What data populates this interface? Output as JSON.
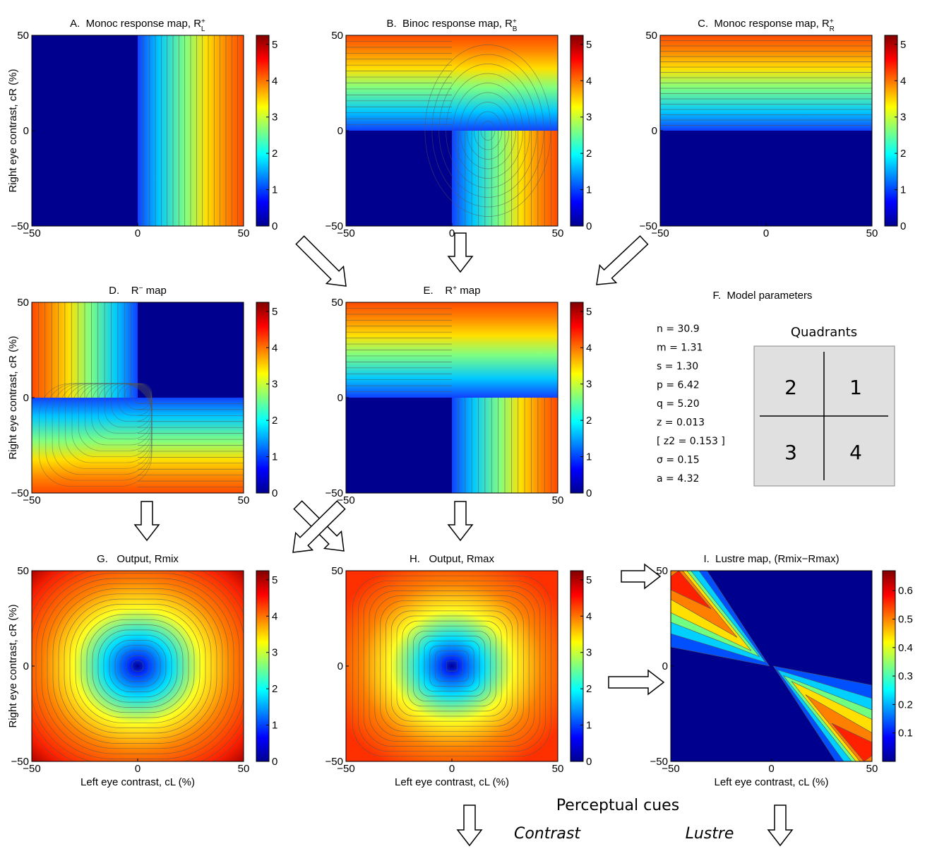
{
  "panels": [
    {
      "title": "A.  Monoc response map, R",
      "title_sup": "+",
      "title_sub": "L",
      "ylabel": "Right eye contrast, cR (%)",
      "xlim": [
        -50,
        50
      ],
      "ylim": [
        -50,
        50
      ],
      "xticks": [
        {
          "value": -50,
          "label": "−50"
        },
        0,
        50
      ],
      "yticks": [
        {
          "value": -50,
          "label": "−50"
        },
        0,
        50
      ],
      "clim": [
        0,
        5.25
      ],
      "cticks": [
        0,
        1,
        2,
        3,
        4,
        5
      ]
    },
    {
      "title": "B.  Binoc response map, R",
      "title_sup": "+",
      "title_sub": "B",
      "xlim": [
        -50,
        50
      ],
      "ylim": [
        -50,
        50
      ],
      "xticks": [
        {
          "value": -50,
          "label": "−50"
        },
        0,
        50
      ],
      "yticks": [
        {
          "value": -50,
          "label": "−50"
        },
        0,
        50
      ],
      "clim": [
        0,
        5.25
      ],
      "cticks": [
        0,
        1,
        2,
        3,
        4,
        5
      ]
    },
    {
      "title": "C.  Monoc response map, R",
      "title_sup": "+",
      "title_sub": "R",
      "xlim": [
        -50,
        50
      ],
      "ylim": [
        -50,
        50
      ],
      "xticks": [
        {
          "value": -50,
          "label": "−50"
        },
        0,
        50
      ],
      "yticks": [
        {
          "value": -50,
          "label": "−50"
        },
        0,
        50
      ],
      "clim": [
        0,
        5.25
      ],
      "cticks": [
        0,
        1,
        2,
        3,
        4,
        5
      ]
    },
    {
      "title": "D.    R",
      "title_sup": "−",
      "title_end": " map",
      "ylabel": "Right eye contrast, cR (%)",
      "xlim": [
        -50,
        50
      ],
      "ylim": [
        -50,
        50
      ],
      "xticks": [
        {
          "value": -50,
          "label": "−50"
        },
        50
      ],
      "yticks": [
        {
          "value": -50,
          "label": "−50"
        },
        0,
        50
      ],
      "clim": [
        0,
        5.25
      ],
      "cticks": [
        0,
        1,
        2,
        3,
        4,
        5
      ]
    },
    {
      "title": "E.    R",
      "title_sup": "+",
      "title_end": " map",
      "xlim": [
        -50,
        50
      ],
      "ylim": [
        -50,
        50
      ],
      "xticks": [
        {
          "value": -50,
          "label": "−50"
        },
        50
      ],
      "yticks": [
        {
          "value": -50,
          "label": "−50"
        },
        0,
        50
      ],
      "clim": [
        0,
        5.25
      ],
      "cticks": [
        0,
        1,
        2,
        3,
        4,
        5
      ]
    },
    {
      "title": "G.   Output, Rmix",
      "ylabel": "Right eye contrast, cR (%)",
      "xlabel": "Left eye contrast, cL (%)",
      "xlim": [
        -50,
        50
      ],
      "ylim": [
        -50,
        50
      ],
      "xticks": [
        {
          "value": -50,
          "label": "−50"
        },
        0,
        50
      ],
      "yticks": [
        {
          "value": -50,
          "label": "−50"
        },
        0,
        50
      ],
      "clim": [
        0,
        5.25
      ],
      "cticks": [
        0,
        1,
        2,
        3,
        4,
        5
      ]
    },
    {
      "title": "H.   Output, Rmax",
      "xlabel": "Left eye contrast, cL (%)",
      "xlim": [
        -50,
        50
      ],
      "ylim": [
        -50,
        50
      ],
      "xticks": [
        {
          "value": -50,
          "label": "−50"
        },
        0,
        50
      ],
      "yticks": [
        {
          "value": -50,
          "label": "−50"
        },
        0,
        50
      ],
      "clim": [
        0,
        5.25
      ],
      "cticks": [
        0,
        1,
        2,
        3,
        4,
        5
      ]
    },
    {
      "title": "I.  Lustre map, (Rmix−Rmax)",
      "xlabel": "Left eye contrast, cL (%)",
      "xlim": [
        -50,
        50
      ],
      "ylim": [
        -50,
        50
      ],
      "xticks": [
        {
          "value": -50,
          "label": "−50"
        },
        0,
        50
      ],
      "yticks": [
        {
          "value": -50,
          "label": "−50"
        },
        0,
        50
      ],
      "clim": [
        0,
        0.67
      ],
      "cticks": [
        0.1,
        0.2,
        0.3,
        0.4,
        0.5,
        0.6
      ]
    }
  ],
  "parameters": {
    "title": "F.  Model parameters",
    "lines": [
      "n = 30.9",
      "m = 1.31",
      "s = 1.30",
      "p = 6.42",
      "q = 5.20",
      "z = 0.013",
      "[ z2 = 0.153 ]",
      "σ = 0.15",
      "a = 4.32"
    ]
  },
  "quadrants": {
    "title": "Quadrants",
    "labels": [
      "2",
      "1",
      "3",
      "4"
    ]
  },
  "cues": {
    "title": "Perceptual cues",
    "items": [
      "Contrast",
      "Lustre"
    ]
  }
}
